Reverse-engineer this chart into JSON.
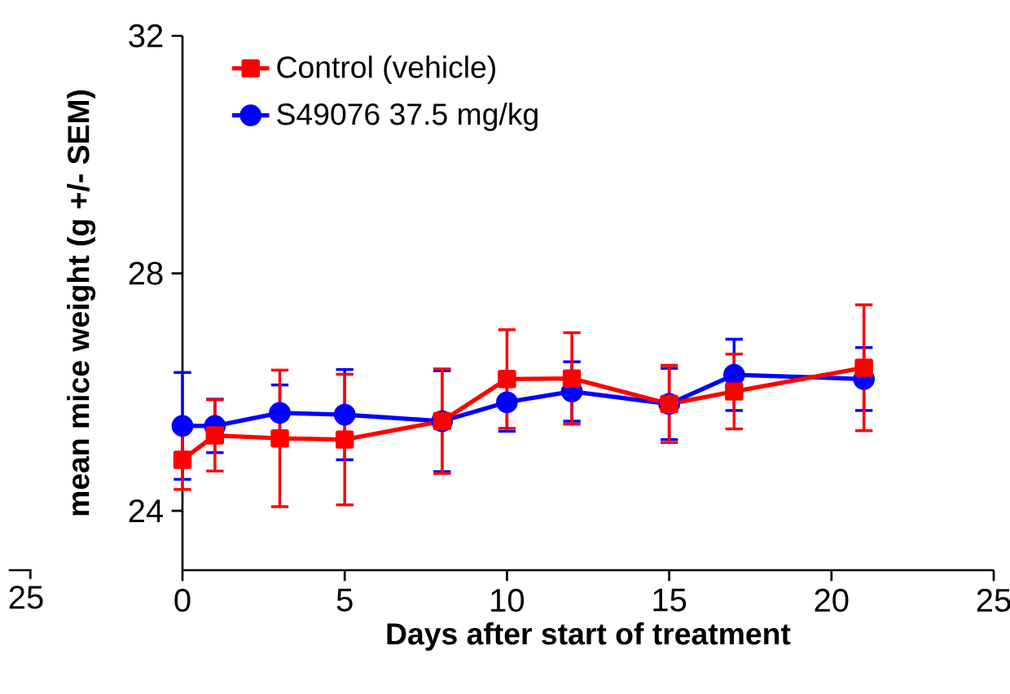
{
  "chart_data": {
    "type": "line",
    "xlabel": "Days after start of treatment",
    "ylabel": "mean mice weight (g +/- SEM)",
    "x": [
      0,
      1,
      3,
      5,
      8,
      10,
      12,
      15,
      17,
      21
    ],
    "series": [
      {
        "name": "Control (vehicle)",
        "color": "#ff0000",
        "marker": "square",
        "values": [
          24.86,
          25.27,
          25.22,
          25.2,
          25.51,
          26.22,
          26.23,
          25.8,
          26.01,
          26.41
        ],
        "errors": [
          0.5,
          0.6,
          1.15,
          1.1,
          0.88,
          0.83,
          0.77,
          0.65,
          0.63,
          1.06
        ]
      },
      {
        "name": "S49076 37.5 mg/kg",
        "color": "#0000ff",
        "marker": "circle",
        "values": [
          25.43,
          25.43,
          25.65,
          25.62,
          25.51,
          25.83,
          26.01,
          25.8,
          26.29,
          26.22
        ],
        "errors": [
          0.9,
          0.45,
          0.47,
          0.76,
          0.85,
          0.49,
          0.5,
          0.6,
          0.6,
          0.53
        ]
      }
    ],
    "xlim": [
      0,
      25
    ],
    "xticks": [
      0,
      5,
      10,
      15,
      20,
      25
    ],
    "ylim": [
      23,
      32
    ],
    "yticks": [
      24,
      28,
      32
    ],
    "legend": "top left",
    "grid": false,
    "line_style": "solid",
    "annotations": [
      "25"
    ]
  }
}
